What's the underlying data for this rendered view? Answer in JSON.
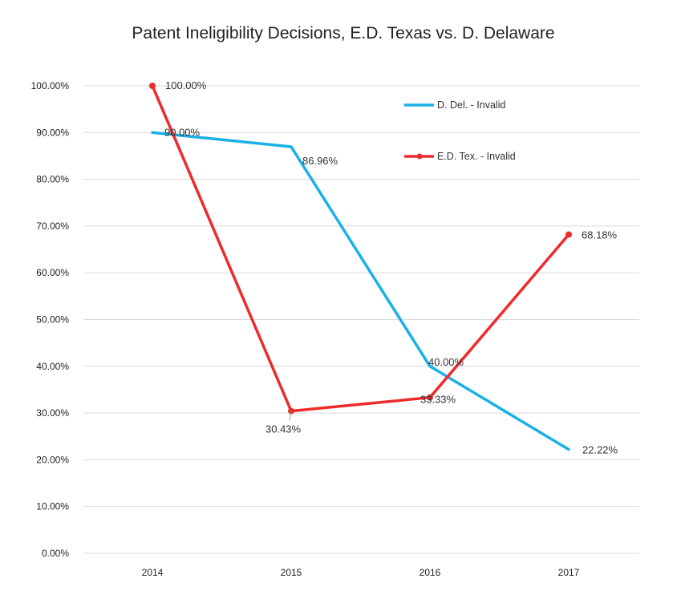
{
  "chart_data": {
    "type": "line",
    "title": "Patent Ineligibility Decisions, E.D. Texas vs. D. Delaware",
    "categories": [
      "2014",
      "2015",
      "2016",
      "2017"
    ],
    "ylim": [
      0,
      100
    ],
    "yticks": [
      "0.00%",
      "10.00%",
      "20.00%",
      "30.00%",
      "40.00%",
      "50.00%",
      "60.00%",
      "70.00%",
      "80.00%",
      "90.00%",
      "100.00%"
    ],
    "grid": true,
    "legend_position": "top-right",
    "series": [
      {
        "name": "D. Del. - Invalid",
        "color": "#1ab0e8",
        "values": [
          90.0,
          86.96,
          40.0,
          22.22
        ],
        "labels": [
          "90.00%",
          "86.96%",
          "40.00%",
          "22.22%"
        ],
        "markers": false
      },
      {
        "name": "E.D. Tex. - Invalid",
        "color": "#ee2b2b",
        "values": [
          100.0,
          30.43,
          33.33,
          68.18
        ],
        "labels": [
          "100.00%",
          "30.43%",
          "33.33%",
          "68.18%"
        ],
        "markers": true
      }
    ]
  }
}
